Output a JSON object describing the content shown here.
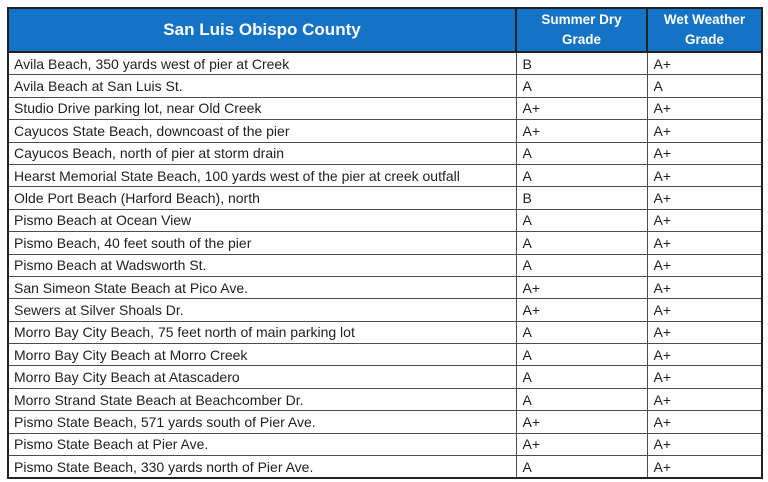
{
  "colors": {
    "header_bg": "#1473c5",
    "header_text": "#ffffff"
  },
  "table": {
    "title": "San Luis Obispo County",
    "columns": [
      "Summer Dry Grade",
      "Wet Weather Grade"
    ],
    "rows": [
      {
        "location": "Avila Beach, 350 yards west of pier at Creek",
        "summer_dry": "B",
        "wet_weather": "A+"
      },
      {
        "location": "Avila Beach at San Luis St.",
        "summer_dry": "A",
        "wet_weather": "A"
      },
      {
        "location": "Studio Drive parking lot, near Old Creek",
        "summer_dry": "A+",
        "wet_weather": "A+"
      },
      {
        "location": "Cayucos State Beach, downcoast of the pier",
        "summer_dry": "A+",
        "wet_weather": "A+"
      },
      {
        "location": "Cayucos Beach, north of pier at storm drain",
        "summer_dry": "A",
        "wet_weather": "A+"
      },
      {
        "location": "Hearst Memorial State Beach, 100 yards west of the pier at creek outfall",
        "summer_dry": "A",
        "wet_weather": "A+"
      },
      {
        "location": "Olde Port Beach (Harford Beach), north",
        "summer_dry": "B",
        "wet_weather": "A+"
      },
      {
        "location": "Pismo Beach at Ocean View",
        "summer_dry": "A",
        "wet_weather": "A+"
      },
      {
        "location": "Pismo Beach, 40 feet south of the pier",
        "summer_dry": "A",
        "wet_weather": "A+"
      },
      {
        "location": "Pismo Beach at Wadsworth St.",
        "summer_dry": "A",
        "wet_weather": "A+"
      },
      {
        "location": "San Simeon State Beach at Pico Ave.",
        "summer_dry": "A+",
        "wet_weather": "A+"
      },
      {
        "location": "Sewers at Silver Shoals Dr.",
        "summer_dry": "A+",
        "wet_weather": "A+"
      },
      {
        "location": "Morro Bay City Beach, 75 feet north of main parking lot",
        "summer_dry": "A",
        "wet_weather": "A+"
      },
      {
        "location": "Morro Bay City Beach at Morro Creek",
        "summer_dry": "A",
        "wet_weather": "A+"
      },
      {
        "location": "Morro Bay City Beach at Atascadero",
        "summer_dry": "A",
        "wet_weather": "A+"
      },
      {
        "location": "Morro Strand State Beach at Beachcomber Dr.",
        "summer_dry": "A",
        "wet_weather": "A+"
      },
      {
        "location": "Pismo State Beach, 571 yards south of Pier Ave.",
        "summer_dry": "A+",
        "wet_weather": "A+"
      },
      {
        "location": "Pismo State Beach at Pier Ave.",
        "summer_dry": "A+",
        "wet_weather": "A+"
      },
      {
        "location": "Pismo State Beach, 330 yards north of Pier Ave.",
        "summer_dry": "A",
        "wet_weather": "A+"
      }
    ]
  }
}
